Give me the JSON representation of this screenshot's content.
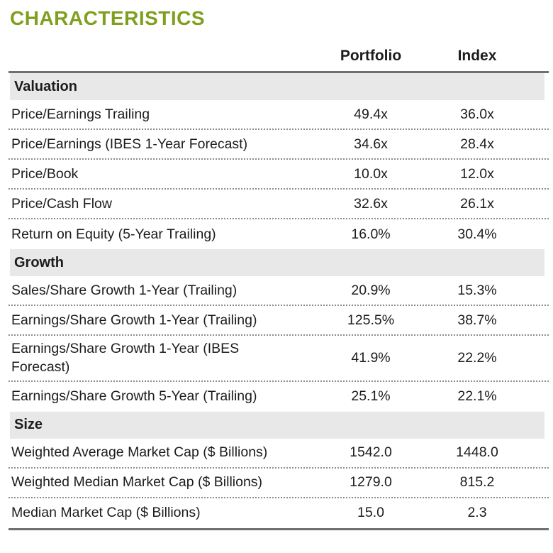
{
  "title": "CHARACTERISTICS",
  "colors": {
    "accent_green": "#7F9F1F",
    "section_band": "#E8E8E8",
    "rule_gray": "#6d7073"
  },
  "table": {
    "columns": [
      "Portfolio",
      "Index"
    ],
    "sections": [
      {
        "name": "Valuation",
        "rows": [
          {
            "label": "Price/Earnings Trailing",
            "portfolio": "49.4x",
            "index": "36.0x"
          },
          {
            "label": "Price/Earnings (IBES 1-Year Forecast)",
            "portfolio": "34.6x",
            "index": "28.4x"
          },
          {
            "label": "Price/Book",
            "portfolio": "10.0x",
            "index": "12.0x"
          },
          {
            "label": "Price/Cash Flow",
            "portfolio": "32.6x",
            "index": "26.1x"
          },
          {
            "label": "Return on Equity (5-Year Trailing)",
            "portfolio": "16.0%",
            "index": "30.4%"
          }
        ]
      },
      {
        "name": "Growth",
        "rows": [
          {
            "label": "Sales/Share Growth 1-Year (Trailing)",
            "portfolio": "20.9%",
            "index": "15.3%"
          },
          {
            "label": "Earnings/Share Growth 1-Year (Trailing)",
            "portfolio": "125.5%",
            "index": "38.7%"
          },
          {
            "label": "Earnings/Share Growth 1-Year (IBES Forecast)",
            "portfolio": "41.9%",
            "index": "22.2%"
          },
          {
            "label": "Earnings/Share Growth 5-Year (Trailing)",
            "portfolio": "25.1%",
            "index": "22.1%"
          }
        ]
      },
      {
        "name": "Size",
        "rows": [
          {
            "label": "Weighted Average Market Cap ($ Billions)",
            "portfolio": "1542.0",
            "index": "1448.0"
          },
          {
            "label": "Weighted Median Market Cap ($ Billions)",
            "portfolio": "1279.0",
            "index": "815.2"
          },
          {
            "label": "Median Market Cap ($ Billions)",
            "portfolio": "15.0",
            "index": "2.3"
          }
        ]
      }
    ]
  }
}
